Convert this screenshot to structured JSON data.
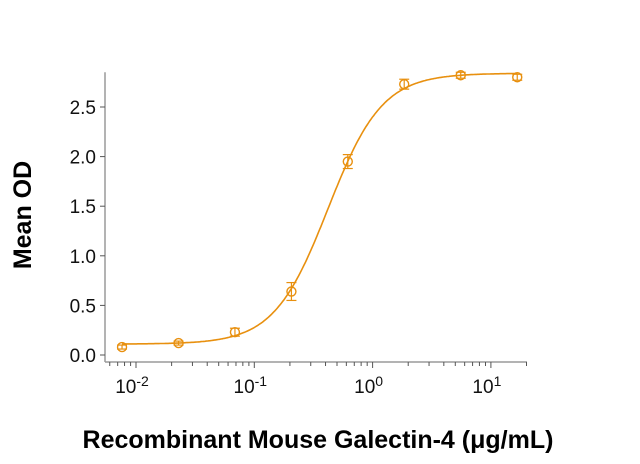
{
  "chart_data": {
    "type": "scatter",
    "xlabel": "Recombinant Mouse Galectin-4 (μg/mL)",
    "ylabel": "Mean OD",
    "xscale": "log",
    "xlim": [
      0.0055,
      21
    ],
    "ylim": [
      -0.07,
      2.85
    ],
    "x_ticks": [
      {
        "value": 0.01,
        "base": "10",
        "exp": "-2"
      },
      {
        "value": 0.1,
        "base": "10",
        "exp": "-1"
      },
      {
        "value": 1,
        "base": "10",
        "exp": "0"
      },
      {
        "value": 10,
        "base": "10",
        "exp": "1"
      }
    ],
    "y_ticks": [
      {
        "value": 0.0,
        "label": "0.0"
      },
      {
        "value": 0.5,
        "label": "0.5"
      },
      {
        "value": 1.0,
        "label": "1.0"
      },
      {
        "value": 1.5,
        "label": "1.5"
      },
      {
        "value": 2.0,
        "label": "2.0"
      },
      {
        "value": 2.5,
        "label": "2.5"
      }
    ],
    "grid": false,
    "color": "#E8900F",
    "points": [
      {
        "x": 0.00762,
        "y": 0.08,
        "err": 0.01
      },
      {
        "x": 0.0229,
        "y": 0.12,
        "err": 0.01
      },
      {
        "x": 0.0686,
        "y": 0.23,
        "err": 0.03
      },
      {
        "x": 0.206,
        "y": 0.64,
        "err": 0.08
      },
      {
        "x": 0.617,
        "y": 1.95,
        "err": 0.06
      },
      {
        "x": 1.85,
        "y": 2.73,
        "err": 0.04
      },
      {
        "x": 5.56,
        "y": 2.82,
        "err": 0.02
      },
      {
        "x": 16.7,
        "y": 2.8,
        "err": 0.02
      }
    ],
    "fit": {
      "model": "4PL",
      "bottom": 0.11,
      "top": 2.84,
      "ec50": 0.42,
      "hill": 1.9
    }
  }
}
